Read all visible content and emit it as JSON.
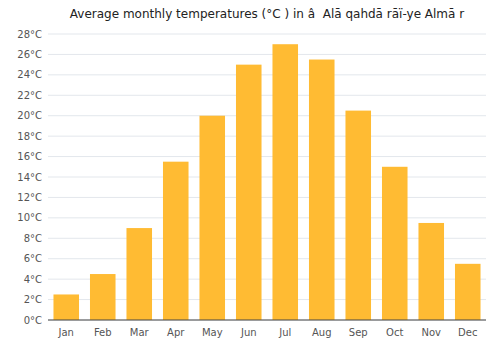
{
  "chart_data": {
    "type": "bar",
    "title": "Average monthly temperatures (°C ) in â  Alā qahdā rāï-ye Almā r",
    "categories": [
      "Jan",
      "Feb",
      "Mar",
      "Apr",
      "May",
      "Jun",
      "Jul",
      "Aug",
      "Sep",
      "Oct",
      "Nov",
      "Dec"
    ],
    "values": [
      2.5,
      4.5,
      9.0,
      15.5,
      20.0,
      25.0,
      27.0,
      25.5,
      20.5,
      15.0,
      9.5,
      5.5
    ],
    "color": "#FFBB33",
    "ylim": [
      0,
      28
    ],
    "yticks": [
      {
        "value": 0,
        "label": "0°C"
      },
      {
        "value": 2,
        "label": "2°C"
      },
      {
        "value": 4,
        "label": "4°C"
      },
      {
        "value": 6,
        "label": "6°C"
      },
      {
        "value": 8,
        "label": "8°C"
      },
      {
        "value": 10,
        "label": "10°C"
      },
      {
        "value": 12,
        "label": "12°C"
      },
      {
        "value": 14,
        "label": "14°C"
      },
      {
        "value": 16,
        "label": "16°C"
      },
      {
        "value": 18,
        "label": "18°C"
      },
      {
        "value": 20,
        "label": "20°C"
      },
      {
        "value": 22,
        "label": "22°C"
      },
      {
        "value": 24,
        "label": "24°C"
      },
      {
        "value": 26,
        "label": "26°C"
      },
      {
        "value": 28,
        "label": "28°C"
      }
    ],
    "grid": true
  }
}
